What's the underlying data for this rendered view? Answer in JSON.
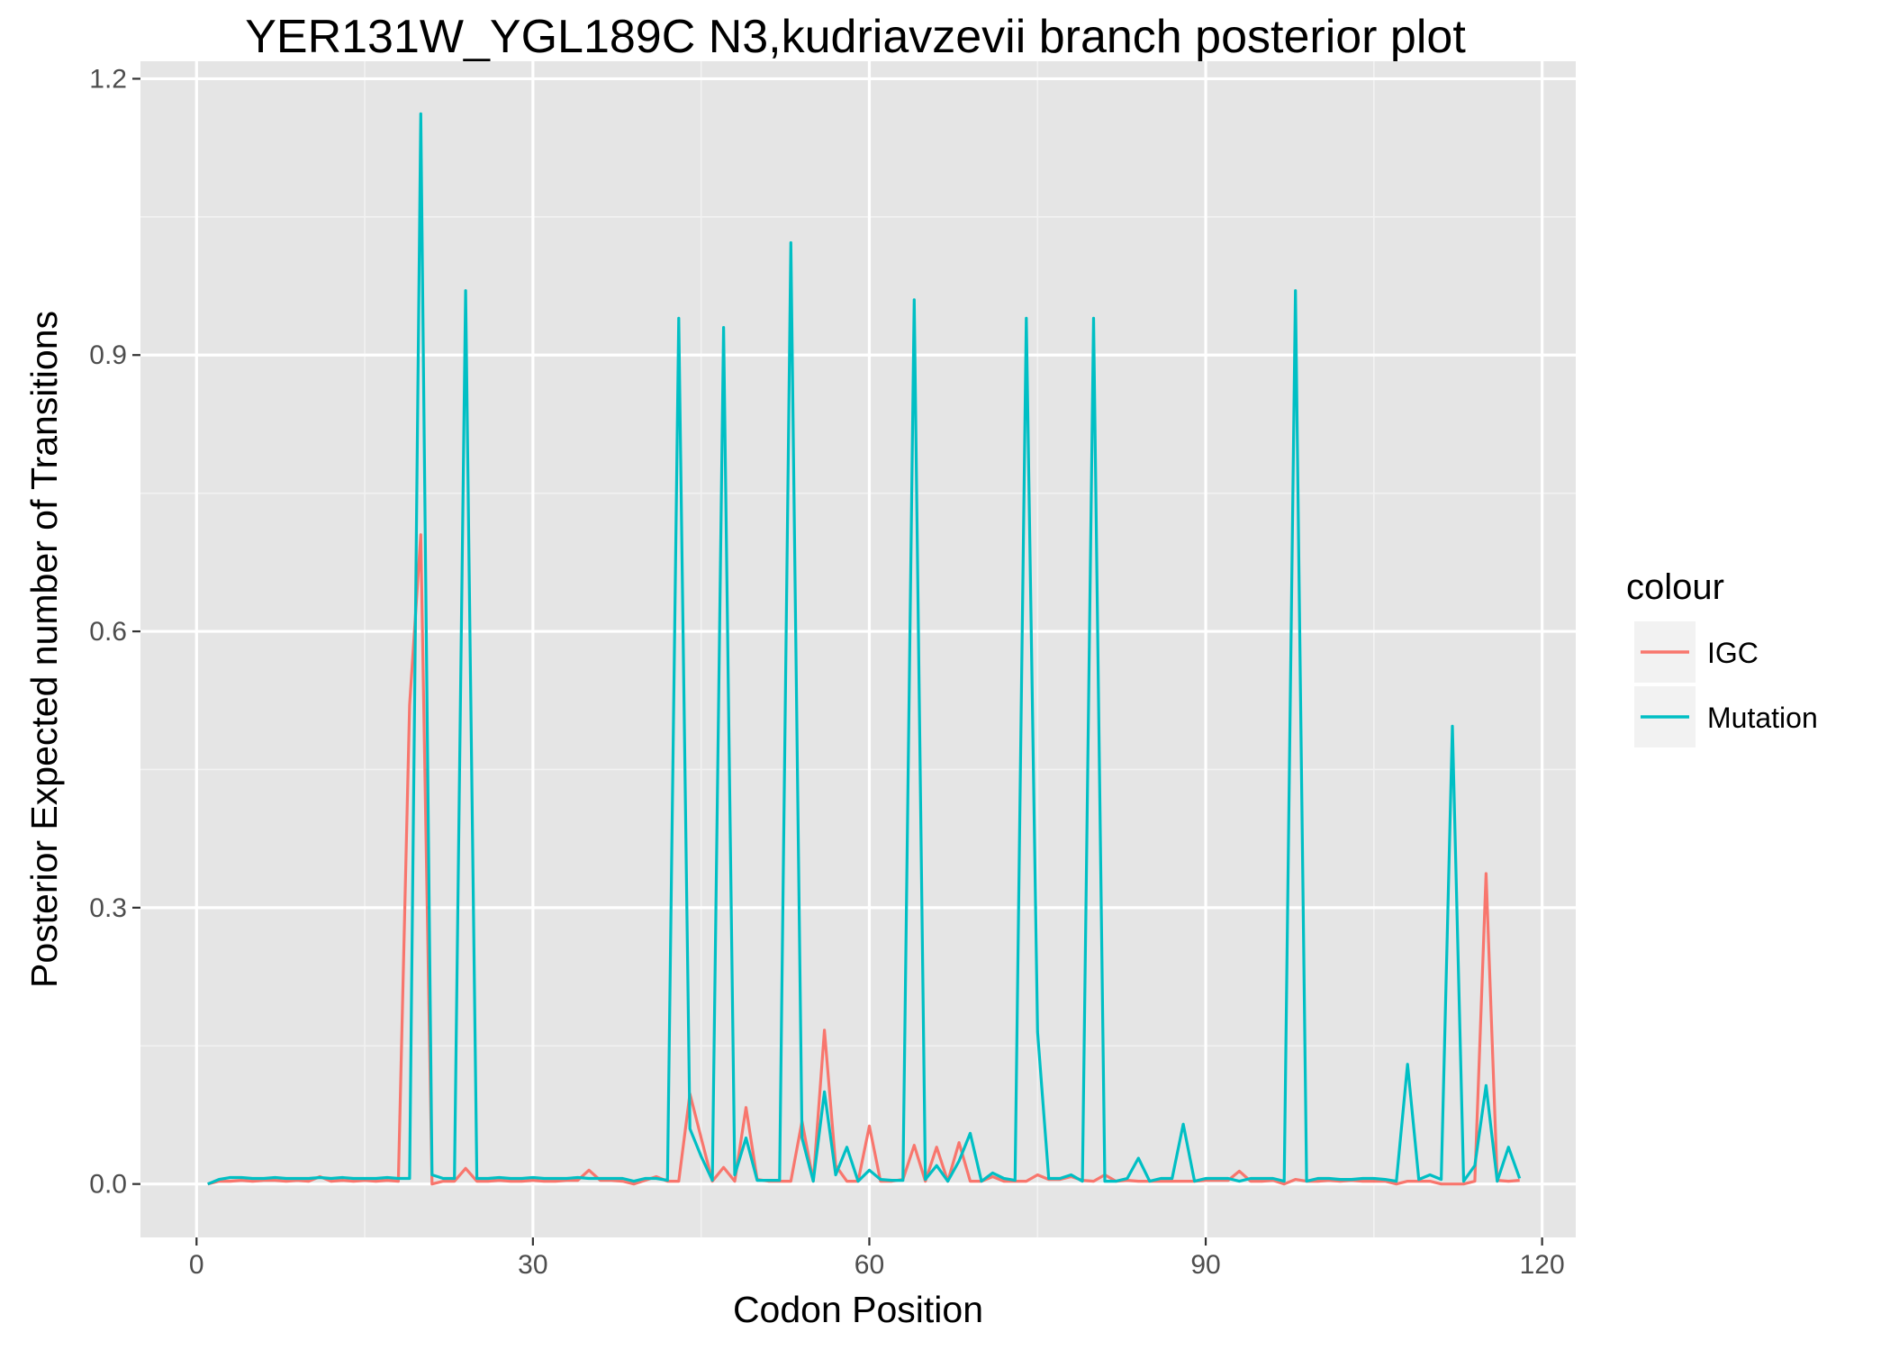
{
  "chart_data": {
    "type": "line",
    "title": "YER131W_YGL189C N3,kudriavzevii branch posterior plot",
    "xlabel": "Codon Position",
    "ylabel": "Posterior Expected number of Transitions",
    "xlim": [
      -5,
      123
    ],
    "ylim": [
      -0.058,
      1.219
    ],
    "xticks": [
      0,
      30,
      60,
      90,
      120
    ],
    "xtick_labels": [
      "0",
      "30",
      "60",
      "90",
      "120"
    ],
    "yticks": [
      0.0,
      0.3,
      0.6,
      0.9,
      1.2
    ],
    "ytick_labels": [
      "0.0",
      "0.3",
      "0.6",
      "0.9",
      "1.2"
    ],
    "background": "#e5e5e5",
    "grid": true,
    "legend": {
      "title": "colour",
      "position": "right"
    },
    "x": [
      1,
      2,
      3,
      4,
      5,
      6,
      7,
      8,
      9,
      10,
      11,
      12,
      13,
      14,
      15,
      16,
      17,
      18,
      19,
      20,
      21,
      22,
      23,
      24,
      25,
      26,
      27,
      28,
      29,
      30,
      31,
      32,
      33,
      34,
      35,
      36,
      37,
      38,
      39,
      40,
      41,
      42,
      43,
      44,
      45,
      46,
      47,
      48,
      49,
      50,
      51,
      52,
      53,
      54,
      55,
      56,
      57,
      58,
      59,
      60,
      61,
      62,
      63,
      64,
      65,
      66,
      67,
      68,
      69,
      70,
      71,
      72,
      73,
      74,
      75,
      76,
      77,
      78,
      79,
      80,
      81,
      82,
      83,
      84,
      85,
      86,
      87,
      88,
      89,
      90,
      91,
      92,
      93,
      94,
      95,
      96,
      97,
      98,
      99,
      100,
      101,
      102,
      103,
      104,
      105,
      106,
      107,
      108,
      109,
      110,
      111,
      112,
      113,
      114,
      115,
      116,
      117,
      118
    ],
    "series": [
      {
        "name": "IGC",
        "color": "#f8766d",
        "values": [
          0.0,
          0.003,
          0.003,
          0.004,
          0.003,
          0.004,
          0.004,
          0.003,
          0.004,
          0.003,
          0.008,
          0.003,
          0.004,
          0.003,
          0.004,
          0.003,
          0.004,
          0.003,
          0.52,
          0.705,
          0.0,
          0.003,
          0.003,
          0.017,
          0.003,
          0.003,
          0.004,
          0.003,
          0.003,
          0.004,
          0.003,
          0.003,
          0.004,
          0.004,
          0.015,
          0.004,
          0.004,
          0.003,
          0.0,
          0.004,
          0.008,
          0.003,
          0.003,
          0.098,
          0.05,
          0.003,
          0.018,
          0.003,
          0.083,
          0.005,
          0.003,
          0.003,
          0.003,
          0.068,
          0.003,
          0.167,
          0.02,
          0.003,
          0.003,
          0.063,
          0.003,
          0.003,
          0.005,
          0.042,
          0.003,
          0.04,
          0.003,
          0.045,
          0.003,
          0.003,
          0.008,
          0.003,
          0.003,
          0.003,
          0.01,
          0.005,
          0.005,
          0.008,
          0.004,
          0.003,
          0.01,
          0.003,
          0.004,
          0.003,
          0.003,
          0.003,
          0.003,
          0.003,
          0.003,
          0.004,
          0.004,
          0.004,
          0.014,
          0.003,
          0.003,
          0.004,
          0.0,
          0.005,
          0.003,
          0.003,
          0.004,
          0.003,
          0.004,
          0.003,
          0.003,
          0.003,
          0.0,
          0.003,
          0.003,
          0.003,
          0.0,
          0.0,
          0.0,
          0.003,
          0.337,
          0.004,
          0.003,
          0.004
        ]
      },
      {
        "name": "Mutation",
        "color": "#00bfc4",
        "values": [
          0.0,
          0.005,
          0.007,
          0.007,
          0.006,
          0.006,
          0.007,
          0.006,
          0.006,
          0.006,
          0.007,
          0.006,
          0.007,
          0.006,
          0.006,
          0.006,
          0.007,
          0.006,
          0.006,
          1.162,
          0.01,
          0.006,
          0.006,
          0.97,
          0.006,
          0.006,
          0.007,
          0.006,
          0.006,
          0.007,
          0.006,
          0.006,
          0.006,
          0.007,
          0.006,
          0.006,
          0.006,
          0.006,
          0.003,
          0.006,
          0.006,
          0.004,
          0.94,
          0.06,
          0.03,
          0.004,
          0.93,
          0.01,
          0.05,
          0.004,
          0.004,
          0.004,
          1.022,
          0.05,
          0.003,
          0.1,
          0.01,
          0.04,
          0.003,
          0.015,
          0.005,
          0.004,
          0.004,
          0.96,
          0.005,
          0.02,
          0.003,
          0.025,
          0.055,
          0.003,
          0.012,
          0.006,
          0.004,
          0.94,
          0.165,
          0.006,
          0.006,
          0.01,
          0.003,
          0.94,
          0.003,
          0.003,
          0.006,
          0.028,
          0.003,
          0.006,
          0.006,
          0.065,
          0.003,
          0.006,
          0.006,
          0.006,
          0.003,
          0.006,
          0.006,
          0.006,
          0.003,
          0.97,
          0.003,
          0.006,
          0.006,
          0.005,
          0.005,
          0.006,
          0.006,
          0.005,
          0.003,
          0.13,
          0.005,
          0.01,
          0.005,
          0.497,
          0.003,
          0.02,
          0.107,
          0.003,
          0.04,
          0.006
        ]
      }
    ]
  }
}
